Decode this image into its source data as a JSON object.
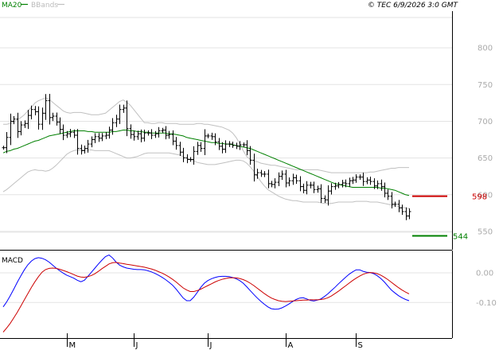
{
  "header": {
    "legend_ma": "MA20",
    "legend_bbands": "BBands",
    "timestamp": "© TEC 6/9/2026 3:0 GMT"
  },
  "colors": {
    "ma": "#008000",
    "bands": "#c0c0c0",
    "bars": "#000000",
    "resistance": "#cc0000",
    "support": "#008000",
    "macd": "#0000ff",
    "signal": "#cc0000",
    "grid": "#e3e3e3",
    "axis_text": "#aaaaaa"
  },
  "chart_data": [
    {
      "type": "ohlc",
      "title": "",
      "y_ticks": [
        "800",
        "750",
        "700",
        "650",
        "600",
        "550"
      ],
      "ylim": [
        525,
        850
      ],
      "x_month_labels": [
        "M",
        "J",
        "J",
        "A",
        "S"
      ],
      "price_series": [
        664,
        678,
        700,
        703,
        686,
        695,
        697,
        708,
        716,
        713,
        696,
        711,
        728,
        705,
        707,
        699,
        689,
        681,
        683,
        685,
        681,
        663,
        660,
        663,
        669,
        675,
        679,
        677,
        680,
        681,
        688,
        698,
        703,
        716,
        718,
        690,
        682,
        679,
        683,
        677,
        684,
        684,
        681,
        683,
        687,
        688,
        681,
        682,
        673,
        667,
        658,
        650,
        648,
        648,
        659,
        667,
        663,
        680,
        680,
        679,
        672,
        666,
        662,
        669,
        669,
        667,
        666,
        668,
        668,
        660,
        647,
        627,
        630,
        628,
        628,
        615,
        614,
        617,
        625,
        628,
        616,
        619,
        623,
        619,
        611,
        606,
        613,
        613,
        607,
        608,
        595,
        593,
        605,
        611,
        612,
        614,
        616,
        615,
        619,
        620,
        624,
        624,
        618,
        620,
        618,
        612,
        615,
        611,
        602,
        598,
        587,
        587,
        582,
        577,
        571,
        577
      ],
      "ma20": [
        657,
        659,
        660,
        662,
        663,
        665,
        667,
        669,
        671,
        673,
        674,
        676,
        678,
        680,
        681,
        682,
        683,
        684,
        685,
        686,
        687,
        687,
        687,
        687,
        686,
        686,
        685,
        685,
        685,
        685,
        685,
        686,
        686,
        687,
        688,
        688,
        687,
        687,
        686,
        686,
        685,
        685,
        684,
        684,
        684,
        684,
        684,
        683,
        683,
        682,
        681,
        680,
        678,
        677,
        676,
        675,
        674,
        673,
        672,
        671,
        671,
        670,
        670,
        669,
        669,
        668,
        667,
        666,
        665,
        664,
        663,
        661,
        659,
        657,
        655,
        653,
        651,
        649,
        647,
        645,
        643,
        641,
        639,
        637,
        635,
        633,
        631,
        629,
        627,
        625,
        623,
        621,
        619,
        617,
        615,
        614,
        613,
        612,
        611,
        610,
        610,
        610,
        610,
        610,
        610,
        610,
        610,
        609,
        609,
        608,
        607,
        606,
        604,
        602,
        600,
        599
      ],
      "bb_upper": [
        696,
        696,
        697,
        699,
        702,
        705,
        709,
        714,
        719,
        725,
        728,
        730,
        732,
        730,
        726,
        722,
        718,
        714,
        712,
        711,
        712,
        712,
        712,
        711,
        710,
        709,
        709,
        709,
        710,
        711,
        715,
        719,
        723,
        727,
        729,
        726,
        722,
        716,
        710,
        704,
        698,
        698,
        697,
        697,
        698,
        698,
        697,
        697,
        697,
        697,
        696,
        696,
        696,
        696,
        696,
        697,
        697,
        696,
        696,
        695,
        694,
        693,
        692,
        690,
        688,
        684,
        678,
        670,
        660,
        652,
        648,
        646,
        645,
        643,
        642,
        641,
        640,
        640,
        639,
        638,
        637,
        636,
        635,
        634,
        634,
        634,
        634,
        634,
        634,
        634,
        633,
        632,
        631,
        630,
        630,
        630,
        630,
        630,
        630,
        630,
        630,
        630,
        630,
        630,
        631,
        631,
        632,
        633,
        634,
        635,
        636,
        636,
        637,
        637,
        637,
        637
      ],
      "bb_lower": [
        604,
        607,
        611,
        615,
        619,
        623,
        627,
        631,
        633,
        634,
        633,
        633,
        632,
        633,
        636,
        640,
        645,
        650,
        655,
        658,
        660,
        661,
        661,
        661,
        661,
        661,
        660,
        660,
        660,
        660,
        660,
        658,
        656,
        654,
        652,
        650,
        650,
        651,
        652,
        654,
        656,
        657,
        657,
        657,
        657,
        657,
        657,
        657,
        656,
        655,
        654,
        652,
        650,
        648,
        646,
        644,
        643,
        642,
        641,
        641,
        641,
        642,
        643,
        644,
        645,
        646,
        647,
        647,
        646,
        643,
        638,
        632,
        625,
        618,
        612,
        607,
        604,
        601,
        598,
        596,
        594,
        593,
        592,
        592,
        591,
        590,
        590,
        590,
        590,
        590,
        589,
        588,
        588,
        588,
        589,
        590,
        590,
        590,
        590,
        590,
        591,
        591,
        591,
        591,
        590,
        590,
        590,
        589,
        588,
        587,
        586,
        585,
        584,
        583,
        582,
        581
      ],
      "resistance": 598,
      "resistance_label": "598",
      "support": 544,
      "support_label": "544"
    },
    {
      "type": "line",
      "title": "",
      "panel_label": "MACD",
      "y_ticks": [
        "0.00",
        "-0.10"
      ],
      "ylim": [
        -0.22,
        0.075
      ],
      "series": [
        {
          "name": "",
          "values": [
            -0.115,
            -0.098,
            -0.077,
            -0.055,
            -0.032,
            -0.01,
            0.01,
            0.027,
            0.04,
            0.048,
            0.051,
            0.049,
            0.044,
            0.036,
            0.026,
            0.016,
            0.007,
            -0.001,
            -0.008,
            -0.013,
            -0.018,
            -0.025,
            -0.03,
            -0.025,
            -0.012,
            0.002,
            0.016,
            0.03,
            0.043,
            0.055,
            0.06,
            0.05,
            0.036,
            0.026,
            0.02,
            0.016,
            0.014,
            0.012,
            0.011,
            0.011,
            0.01,
            0.007,
            0.003,
            -0.002,
            -0.008,
            -0.015,
            -0.023,
            -0.032,
            -0.042,
            -0.055,
            -0.07,
            -0.085,
            -0.094,
            -0.094,
            -0.082,
            -0.066,
            -0.049,
            -0.035,
            -0.026,
            -0.02,
            -0.016,
            -0.013,
            -0.012,
            -0.012,
            -0.013,
            -0.016,
            -0.02,
            -0.026,
            -0.035,
            -0.047,
            -0.06,
            -0.073,
            -0.085,
            -0.096,
            -0.106,
            -0.115,
            -0.121,
            -0.123,
            -0.122,
            -0.118,
            -0.112,
            -0.105,
            -0.097,
            -0.09,
            -0.085,
            -0.084,
            -0.088,
            -0.093,
            -0.095,
            -0.092,
            -0.088,
            -0.08,
            -0.071,
            -0.06,
            -0.049,
            -0.037,
            -0.026,
            -0.015,
            -0.005,
            0.003,
            0.01,
            0.01,
            0.005,
            0.002,
            0.001,
            -0.003,
            -0.01,
            -0.019,
            -0.031,
            -0.045,
            -0.058,
            -0.068,
            -0.077,
            -0.084,
            -0.09,
            -0.094
          ]
        },
        {
          "name": "",
          "values": [
            -0.2,
            -0.186,
            -0.17,
            -0.152,
            -0.133,
            -0.112,
            -0.091,
            -0.07,
            -0.049,
            -0.03,
            -0.013,
            0.002,
            0.011,
            0.015,
            0.016,
            0.015,
            0.012,
            0.008,
            0.004,
            -0.001,
            -0.006,
            -0.011,
            -0.014,
            -0.015,
            -0.013,
            -0.009,
            -0.003,
            0.005,
            0.014,
            0.022,
            0.03,
            0.034,
            0.035,
            0.033,
            0.031,
            0.029,
            0.027,
            0.025,
            0.023,
            0.021,
            0.019,
            0.016,
            0.013,
            0.009,
            0.004,
            -0.001,
            -0.007,
            -0.014,
            -0.022,
            -0.031,
            -0.041,
            -0.051,
            -0.058,
            -0.063,
            -0.063,
            -0.06,
            -0.055,
            -0.049,
            -0.043,
            -0.037,
            -0.031,
            -0.026,
            -0.022,
            -0.019,
            -0.017,
            -0.017,
            -0.017,
            -0.019,
            -0.023,
            -0.028,
            -0.035,
            -0.043,
            -0.052,
            -0.061,
            -0.07,
            -0.078,
            -0.085,
            -0.09,
            -0.094,
            -0.096,
            -0.097,
            -0.096,
            -0.095,
            -0.094,
            -0.093,
            -0.092,
            -0.092,
            -0.091,
            -0.091,
            -0.091,
            -0.09,
            -0.088,
            -0.084,
            -0.078,
            -0.07,
            -0.062,
            -0.053,
            -0.044,
            -0.035,
            -0.026,
            -0.018,
            -0.011,
            -0.005,
            -0.001,
            0.001,
            0.0,
            -0.003,
            -0.008,
            -0.015,
            -0.023,
            -0.032,
            -0.041,
            -0.05,
            -0.058,
            -0.065,
            -0.071
          ]
        }
      ]
    }
  ]
}
